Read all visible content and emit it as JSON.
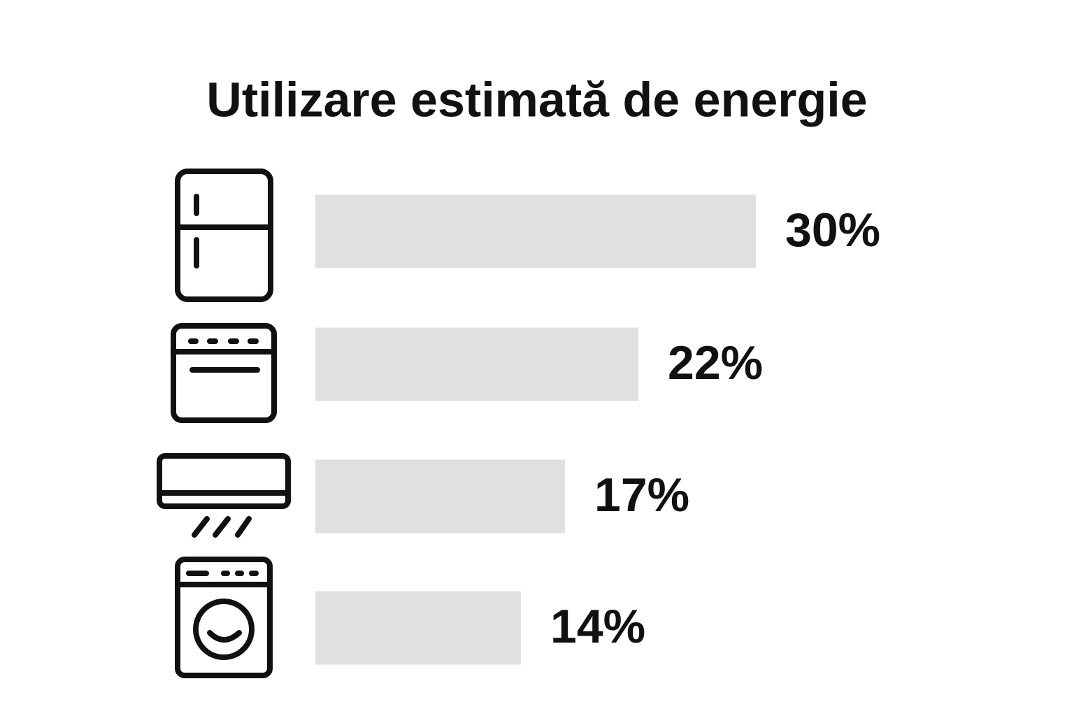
{
  "chart_data": {
    "type": "bar",
    "orientation": "horizontal",
    "title": "Utilizare estimată de energie",
    "values": [
      30,
      22,
      17,
      14
    ],
    "value_labels": [
      "30%",
      "22%",
      "17%",
      "14%"
    ],
    "color": "#e0e0e0"
  }
}
